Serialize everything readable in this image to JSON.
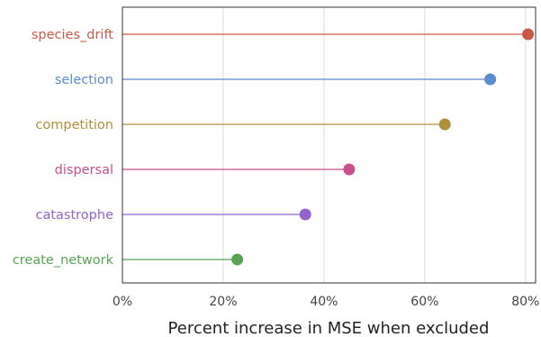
{
  "chart_data": {
    "type": "lollipop",
    "categories": [
      "species_drift",
      "selection",
      "competition",
      "dispersal",
      "catastrophe",
      "create_network"
    ],
    "values": [
      80.5,
      73,
      64,
      45,
      36.3,
      22.8
    ],
    "colors": [
      "#c85a48",
      "#5b8ccd",
      "#b08f3b",
      "#c8508e",
      "#9463c9",
      "#5aa355"
    ],
    "xlabel": "Percent increase in MSE when excluded",
    "xlim": [
      0,
      82
    ],
    "xticks": [
      0,
      20,
      40,
      60,
      80
    ],
    "xtick_labels": [
      "0%",
      "20%",
      "40%",
      "60%",
      "80%"
    ],
    "grid": "vertical"
  }
}
